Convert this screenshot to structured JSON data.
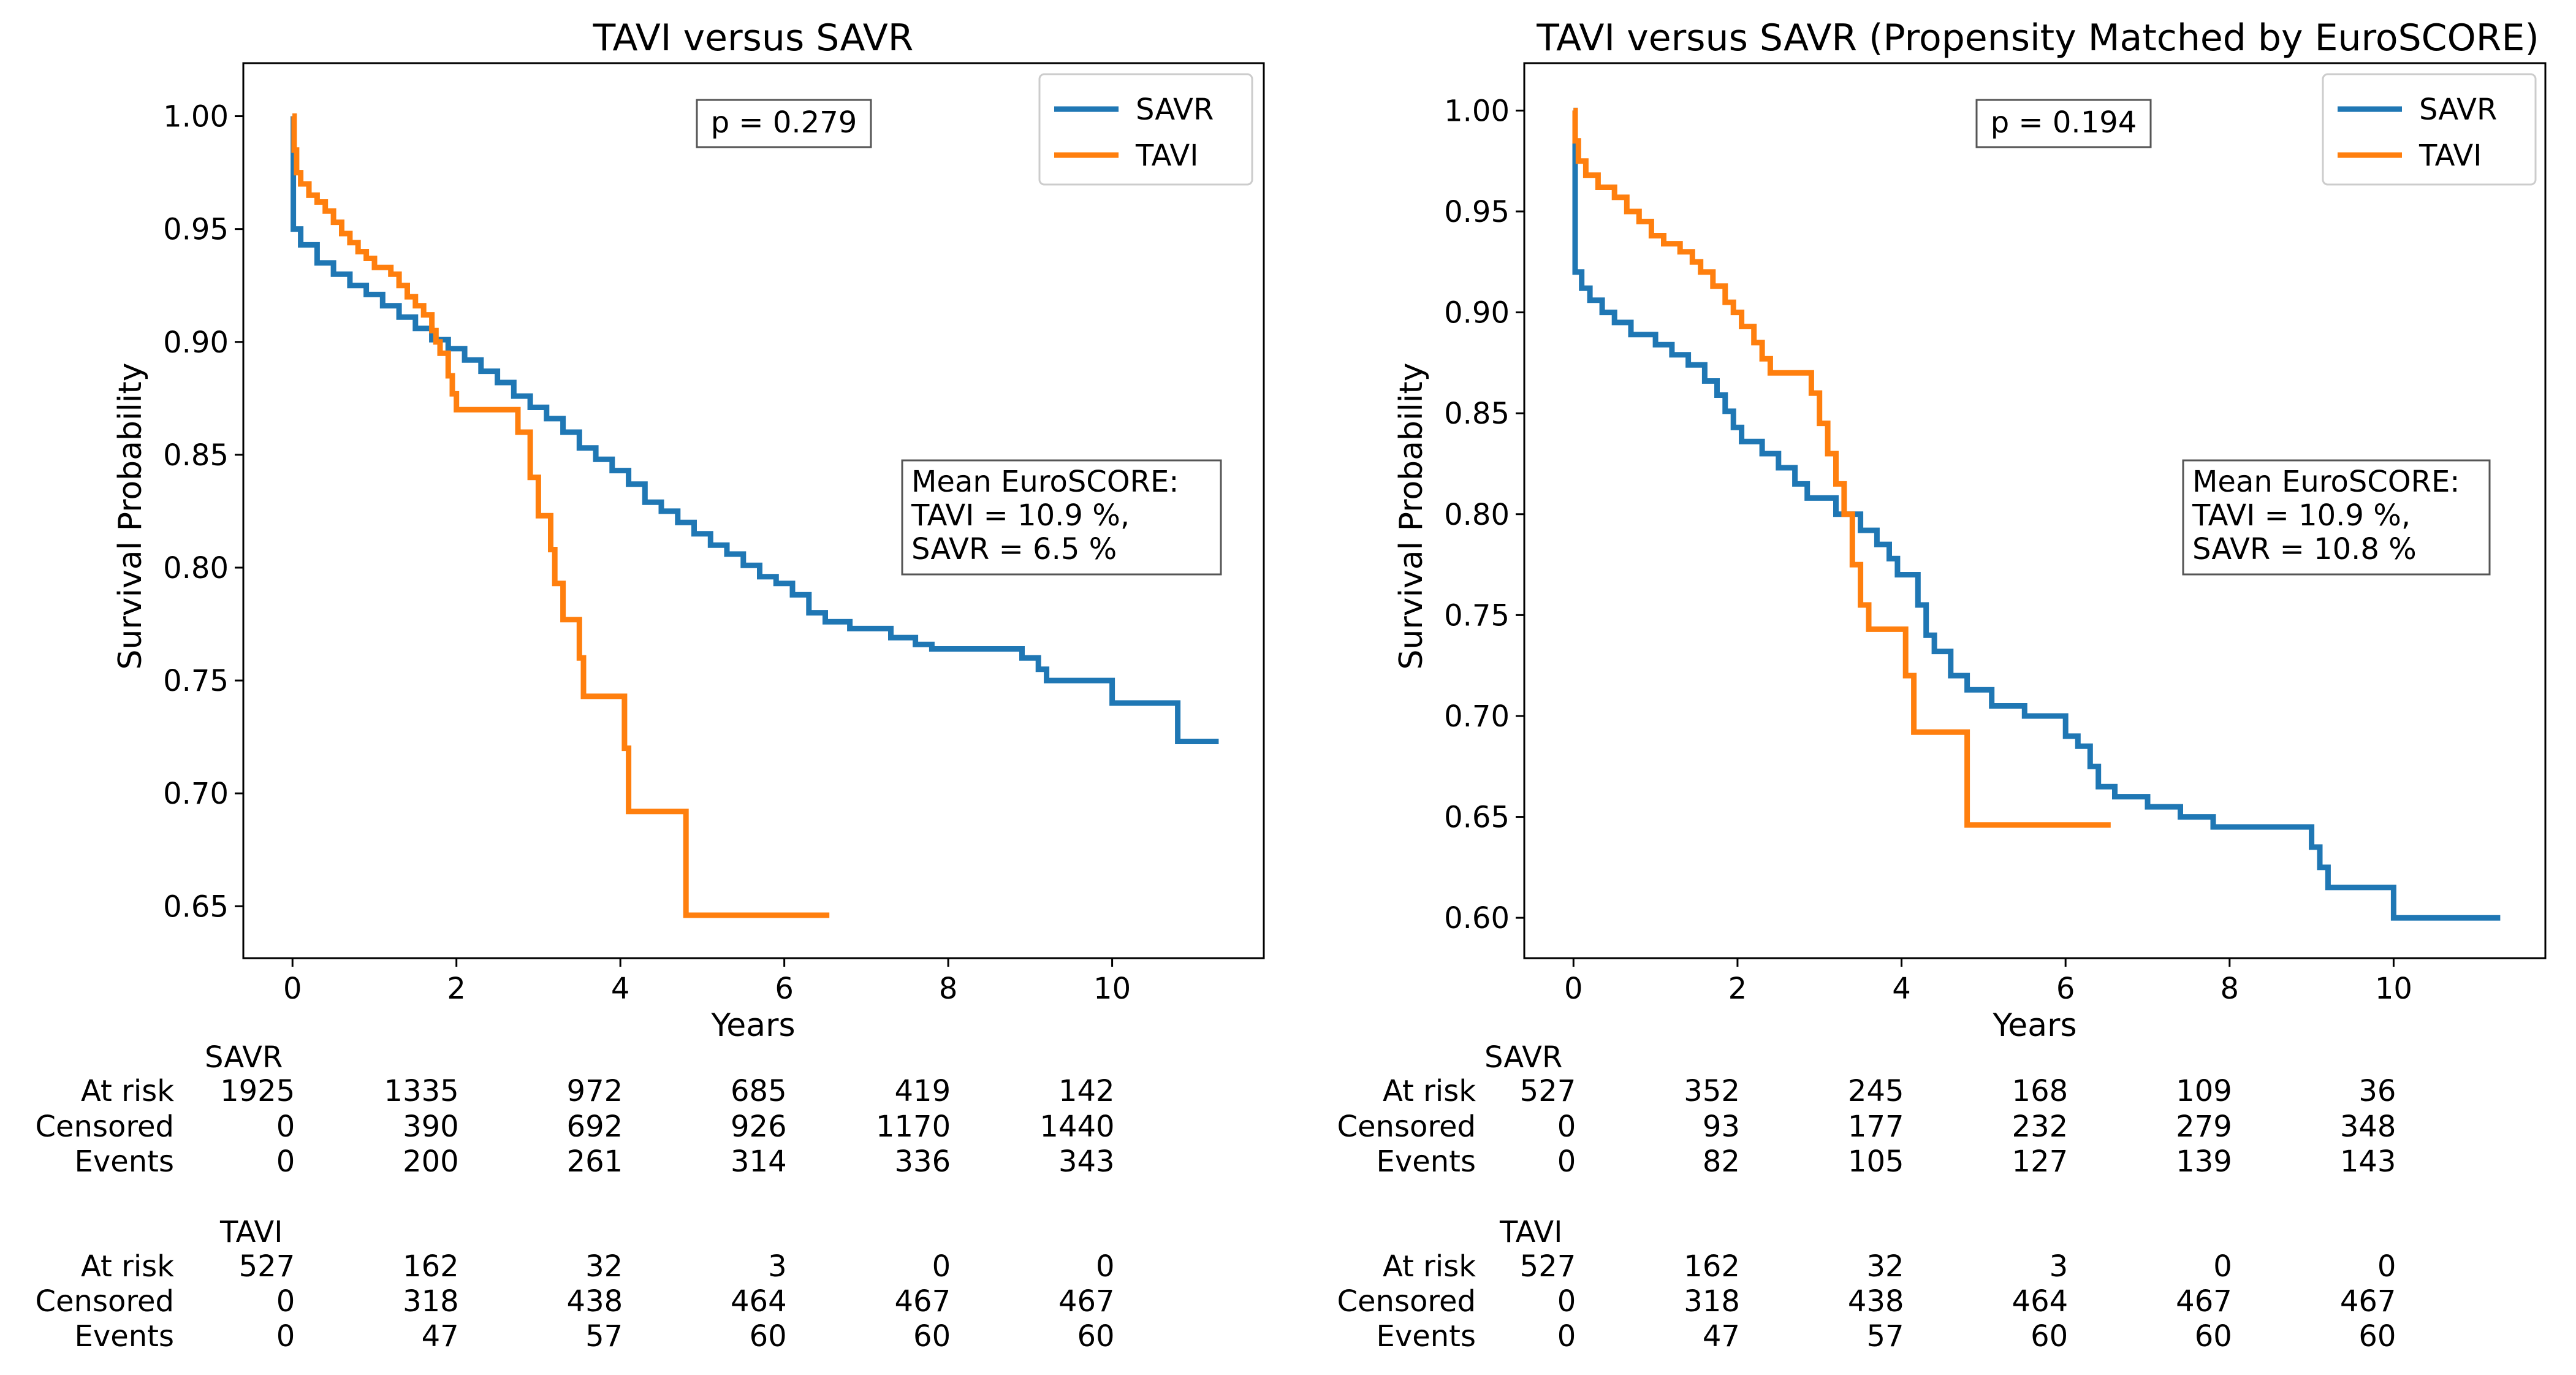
{
  "chart_data": [
    {
      "type": "line",
      "title": "TAVI versus SAVR",
      "xlabel": "Years",
      "ylabel": "Survival Probability",
      "xlim": [
        -0.6,
        11.85
      ],
      "ylim": [
        0.627,
        1.0235
      ],
      "xticks": [
        0,
        2,
        4,
        6,
        8,
        10
      ],
      "xtick_labels": [
        "0",
        "2",
        "4",
        "6",
        "8",
        "10"
      ],
      "yticks": [
        0.65,
        0.7,
        0.75,
        0.8,
        0.85,
        0.9,
        0.95,
        1.0
      ],
      "ytick_labels": [
        "0.65",
        "0.70",
        "0.75",
        "0.80",
        "0.85",
        "0.90",
        "0.95",
        "1.00"
      ],
      "grid": false,
      "legend_position": "top-right",
      "pvalue_text": "p = 0.279",
      "annotation_lines": [
        "Mean EuroSCORE:",
        "TAVI = 10.9 %,",
        "SAVR = 6.5 %"
      ],
      "series": [
        {
          "name": "SAVR",
          "color": "#1f77b4",
          "steps": [
            [
              0,
              1.0
            ],
            [
              0.01,
              0.95
            ],
            [
              0.1,
              0.943
            ],
            [
              0.3,
              0.935
            ],
            [
              0.5,
              0.93
            ],
            [
              0.7,
              0.925
            ],
            [
              0.9,
              0.921
            ],
            [
              1.1,
              0.916
            ],
            [
              1.3,
              0.911
            ],
            [
              1.5,
              0.906
            ],
            [
              1.7,
              0.901
            ],
            [
              1.9,
              0.897
            ],
            [
              2.1,
              0.892
            ],
            [
              2.3,
              0.887
            ],
            [
              2.5,
              0.882
            ],
            [
              2.7,
              0.876
            ],
            [
              2.9,
              0.871
            ],
            [
              3.1,
              0.866
            ],
            [
              3.3,
              0.86
            ],
            [
              3.5,
              0.853
            ],
            [
              3.7,
              0.848
            ],
            [
              3.9,
              0.843
            ],
            [
              4.1,
              0.837
            ],
            [
              4.3,
              0.829
            ],
            [
              4.5,
              0.825
            ],
            [
              4.7,
              0.82
            ],
            [
              4.9,
              0.815
            ],
            [
              5.1,
              0.81
            ],
            [
              5.3,
              0.806
            ],
            [
              5.5,
              0.801
            ],
            [
              5.7,
              0.796
            ],
            [
              5.9,
              0.793
            ],
            [
              6.1,
              0.788
            ],
            [
              6.3,
              0.78
            ],
            [
              6.5,
              0.776
            ],
            [
              6.8,
              0.773
            ],
            [
              7.1,
              0.773
            ],
            [
              7.3,
              0.769
            ],
            [
              7.6,
              0.766
            ],
            [
              7.8,
              0.764
            ],
            [
              8.7,
              0.764
            ],
            [
              8.9,
              0.76
            ],
            [
              9.1,
              0.755
            ],
            [
              9.2,
              0.75
            ],
            [
              9.9,
              0.75
            ],
            [
              10.0,
              0.74
            ],
            [
              10.8,
              0.74
            ],
            [
              10.8,
              0.723
            ],
            [
              11.3,
              0.723
            ]
          ],
          "risk_table": {
            "label": "SAVR",
            "at_risk": [
              "1925",
              "1335",
              "972",
              "685",
              "419",
              "142"
            ],
            "censored": [
              "0",
              "390",
              "692",
              "926",
              "1170",
              "1440"
            ],
            "events": [
              "0",
              "200",
              "261",
              "314",
              "336",
              "343"
            ]
          }
        },
        {
          "name": "TAVI",
          "color": "#ff7f0e",
          "steps": [
            [
              0,
              1.0
            ],
            [
              0.02,
              0.985
            ],
            [
              0.05,
              0.975
            ],
            [
              0.1,
              0.97
            ],
            [
              0.2,
              0.965
            ],
            [
              0.3,
              0.962
            ],
            [
              0.4,
              0.958
            ],
            [
              0.5,
              0.953
            ],
            [
              0.6,
              0.948
            ],
            [
              0.7,
              0.944
            ],
            [
              0.8,
              0.94
            ],
            [
              0.9,
              0.937
            ],
            [
              1.0,
              0.933
            ],
            [
              1.2,
              0.93
            ],
            [
              1.3,
              0.925
            ],
            [
              1.4,
              0.92
            ],
            [
              1.5,
              0.916
            ],
            [
              1.6,
              0.912
            ],
            [
              1.7,
              0.905
            ],
            [
              1.75,
              0.9
            ],
            [
              1.8,
              0.895
            ],
            [
              1.9,
              0.885
            ],
            [
              1.95,
              0.877
            ],
            [
              2.0,
              0.87
            ],
            [
              2.6,
              0.87
            ],
            [
              2.75,
              0.86
            ],
            [
              2.9,
              0.84
            ],
            [
              3.0,
              0.823
            ],
            [
              3.15,
              0.808
            ],
            [
              3.2,
              0.793
            ],
            [
              3.3,
              0.777
            ],
            [
              3.5,
              0.76
            ],
            [
              3.55,
              0.743
            ],
            [
              4.05,
              0.72
            ],
            [
              4.1,
              0.692
            ],
            [
              4.8,
              0.692
            ],
            [
              4.8,
              0.646
            ],
            [
              6.55,
              0.646
            ]
          ],
          "risk_table": {
            "label": "TAVI",
            "at_risk": [
              "527",
              "162",
              "32",
              "3",
              "0",
              "0"
            ],
            "censored": [
              "0",
              "318",
              "438",
              "464",
              "467",
              "467"
            ],
            "events": [
              "0",
              "47",
              "57",
              "60",
              "60",
              "60"
            ]
          }
        }
      ]
    },
    {
      "type": "line",
      "title": "TAVI versus SAVR (Propensity Matched by EuroSCORE)",
      "xlabel": "Years",
      "ylabel": "Survival Probability",
      "xlim": [
        -0.6,
        11.85
      ],
      "ylim": [
        0.58,
        1.0235
      ],
      "xticks": [
        0,
        2,
        4,
        6,
        8,
        10
      ],
      "xtick_labels": [
        "0",
        "2",
        "4",
        "6",
        "8",
        "10"
      ],
      "yticks": [
        0.6,
        0.65,
        0.7,
        0.75,
        0.8,
        0.85,
        0.9,
        0.95,
        1.0
      ],
      "ytick_labels": [
        "0.60",
        "0.65",
        "0.70",
        "0.75",
        "0.80",
        "0.85",
        "0.90",
        "0.95",
        "1.00"
      ],
      "grid": false,
      "legend_position": "top-right",
      "pvalue_text": "p = 0.194",
      "annotation_lines": [
        "Mean EuroSCORE:",
        "TAVI = 10.9 %,",
        "SAVR = 10.8 %"
      ],
      "series": [
        {
          "name": "SAVR",
          "color": "#1f77b4",
          "steps": [
            [
              0,
              1.0
            ],
            [
              0.02,
              0.92
            ],
            [
              0.1,
              0.912
            ],
            [
              0.2,
              0.906
            ],
            [
              0.35,
              0.9
            ],
            [
              0.5,
              0.895
            ],
            [
              0.7,
              0.889
            ],
            [
              1.0,
              0.884
            ],
            [
              1.2,
              0.879
            ],
            [
              1.4,
              0.874
            ],
            [
              1.6,
              0.866
            ],
            [
              1.75,
              0.859
            ],
            [
              1.85,
              0.851
            ],
            [
              1.95,
              0.843
            ],
            [
              2.05,
              0.836
            ],
            [
              2.3,
              0.83
            ],
            [
              2.5,
              0.823
            ],
            [
              2.7,
              0.815
            ],
            [
              2.85,
              0.808
            ],
            [
              3.2,
              0.8
            ],
            [
              3.5,
              0.792
            ],
            [
              3.7,
              0.785
            ],
            [
              3.85,
              0.778
            ],
            [
              3.95,
              0.77
            ],
            [
              4.2,
              0.755
            ],
            [
              4.3,
              0.74
            ],
            [
              4.4,
              0.732
            ],
            [
              4.6,
              0.72
            ],
            [
              4.8,
              0.713
            ],
            [
              5.1,
              0.705
            ],
            [
              5.5,
              0.7
            ],
            [
              5.9,
              0.7
            ],
            [
              6.0,
              0.69
            ],
            [
              6.15,
              0.685
            ],
            [
              6.3,
              0.675
            ],
            [
              6.4,
              0.665
            ],
            [
              6.6,
              0.66
            ],
            [
              7.0,
              0.655
            ],
            [
              7.4,
              0.65
            ],
            [
              7.8,
              0.645
            ],
            [
              8.9,
              0.645
            ],
            [
              9.0,
              0.635
            ],
            [
              9.1,
              0.625
            ],
            [
              9.2,
              0.615
            ],
            [
              9.9,
              0.615
            ],
            [
              10.0,
              0.6
            ],
            [
              11.3,
              0.6
            ]
          ],
          "risk_table": {
            "label": "SAVR",
            "at_risk": [
              "527",
              "352",
              "245",
              "168",
              "109",
              "36"
            ],
            "censored": [
              "0",
              "93",
              "177",
              "232",
              "279",
              "348"
            ],
            "events": [
              "0",
              "82",
              "105",
              "127",
              "139",
              "143"
            ]
          }
        },
        {
          "name": "TAVI",
          "color": "#ff7f0e",
          "steps": [
            [
              0,
              1.0
            ],
            [
              0.02,
              0.985
            ],
            [
              0.06,
              0.975
            ],
            [
              0.15,
              0.968
            ],
            [
              0.3,
              0.962
            ],
            [
              0.5,
              0.957
            ],
            [
              0.65,
              0.95
            ],
            [
              0.8,
              0.945
            ],
            [
              0.95,
              0.938
            ],
            [
              1.1,
              0.934
            ],
            [
              1.3,
              0.93
            ],
            [
              1.45,
              0.925
            ],
            [
              1.55,
              0.92
            ],
            [
              1.7,
              0.913
            ],
            [
              1.85,
              0.905
            ],
            [
              1.95,
              0.9
            ],
            [
              2.05,
              0.893
            ],
            [
              2.2,
              0.885
            ],
            [
              2.3,
              0.877
            ],
            [
              2.4,
              0.87
            ],
            [
              2.9,
              0.86
            ],
            [
              3.0,
              0.845
            ],
            [
              3.1,
              0.83
            ],
            [
              3.2,
              0.815
            ],
            [
              3.3,
              0.8
            ],
            [
              3.4,
              0.775
            ],
            [
              3.5,
              0.755
            ],
            [
              3.6,
              0.743
            ],
            [
              4.05,
              0.72
            ],
            [
              4.15,
              0.692
            ],
            [
              4.8,
              0.692
            ],
            [
              4.8,
              0.646
            ],
            [
              6.55,
              0.646
            ]
          ],
          "risk_table": {
            "label": "TAVI",
            "at_risk": [
              "527",
              "162",
              "32",
              "3",
              "0",
              "0"
            ],
            "censored": [
              "0",
              "318",
              "438",
              "464",
              "467",
              "467"
            ],
            "events": [
              "0",
              "47",
              "57",
              "60",
              "60",
              "60"
            ]
          }
        }
      ]
    }
  ],
  "risk_row_labels": {
    "at_risk": "At risk",
    "censored": "Censored",
    "events": "Events"
  }
}
